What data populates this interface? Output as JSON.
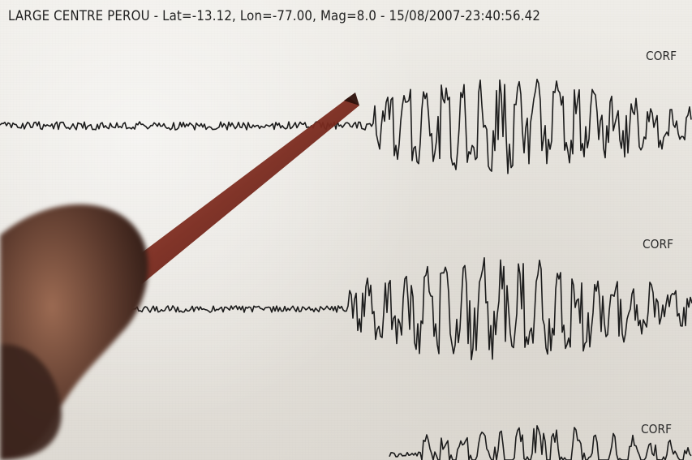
{
  "header": {
    "text": "LARGE CENTRE PEROU - Lat=-13.12, Lon=-77.00, Mag=8.0 - 15/08/2007-23:40:56.42"
  },
  "traces": [
    {
      "label": "CORF"
    },
    {
      "label": "CORF"
    },
    {
      "label": "CORF"
    }
  ],
  "colors": {
    "paper": "#e9e7e2",
    "ink": "#1c1c1c",
    "pencil": "#7a2a1e",
    "hand": "#5c3a2d"
  }
}
